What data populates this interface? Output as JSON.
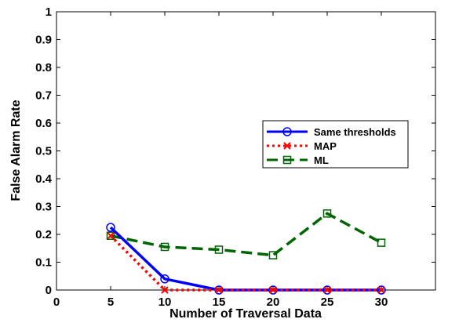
{
  "chart_data": {
    "type": "line",
    "title": "",
    "xlabel": "Number of Traversal Data",
    "ylabel": "False Alarm Rate",
    "xlim": [
      0,
      35
    ],
    "ylim": [
      0,
      1
    ],
    "x_ticks": [
      "0",
      "5",
      "10",
      "15",
      "20",
      "25",
      "30"
    ],
    "y_ticks": [
      "0",
      "0.1",
      "0.2",
      "0.3",
      "0.4",
      "0.5",
      "0.6",
      "0.7",
      "0.8",
      "0.9",
      "1"
    ],
    "grid": false,
    "legend_position": "right",
    "x": [
      5,
      10,
      15,
      20,
      25,
      30
    ],
    "series": [
      {
        "name": "Same thresholds",
        "values": [
          0.225,
          0.04,
          0,
          0,
          0,
          0
        ],
        "color": "#0000ff",
        "marker": "circle",
        "line_style": "solid"
      },
      {
        "name": "MAP",
        "values": [
          0.195,
          0,
          0,
          0,
          0,
          0
        ],
        "color": "#ff0000",
        "marker": "x",
        "line_style": "dotted"
      },
      {
        "name": "ML",
        "values": [
          0.195,
          0.155,
          0.145,
          0.125,
          0.275,
          0.17
        ],
        "color": "#006400",
        "marker": "square",
        "line_style": "dashed"
      }
    ]
  }
}
